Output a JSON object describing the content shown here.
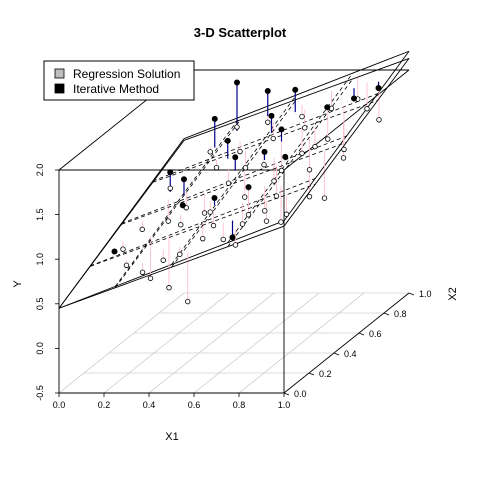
{
  "chart_data": {
    "type": "scatter",
    "title": "3-D Scatterplot",
    "xlabel": "X1",
    "ylabel": "Y",
    "zlabel": "X2",
    "xlim": [
      0,
      1
    ],
    "zlim": [
      0,
      1
    ],
    "ylim": [
      -0.5,
      2.0
    ],
    "x_ticks": [
      "0.0",
      "0.2",
      "0.4",
      "0.6",
      "0.8",
      "1.0"
    ],
    "z_ticks": [
      "0.0",
      "0.2",
      "0.4",
      "0.6",
      "0.8",
      "1.0"
    ],
    "y_ticks": [
      "-0.5",
      "0.0",
      "0.5",
      "1.0",
      "1.5",
      "2.0"
    ],
    "legend": {
      "position": "top-left",
      "entries": [
        {
          "label": "Regression Solution",
          "color": "#bebebe"
        },
        {
          "label": "Iterative Method",
          "color": "#000000"
        }
      ]
    },
    "regression_plane": {
      "intercept": 0.45,
      "b1": 0.98,
      "b2": 0.78
    },
    "iterative_plane": {
      "intercept": 0.45,
      "b1": 0.92,
      "b2": 0.76
    },
    "colors": {
      "regression_drop": "#ffc0cb",
      "iterative_drop": "#00008b",
      "grid": "#bebebe"
    },
    "series": [
      {
        "name": "Regression Solution",
        "marker": "open-circle",
        "points": [
          [
            0.09,
            0.35,
            0.72
          ],
          [
            0.2,
            0.18,
            0.73
          ],
          [
            0.31,
            0.11,
            0.73
          ],
          [
            0.38,
            0.15,
            0.82
          ],
          [
            0.47,
            0.12,
            0.92
          ],
          [
            0.55,
            0.04,
            0.48
          ],
          [
            0.5,
            0.25,
            0.95
          ],
          [
            0.63,
            0.18,
            1.02
          ],
          [
            0.74,
            0.08,
            1.07
          ],
          [
            0.8,
            0.22,
            1.18
          ],
          [
            0.26,
            0.55,
            0.96
          ],
          [
            0.38,
            0.48,
            0.98
          ],
          [
            0.45,
            0.4,
            1.08
          ],
          [
            0.52,
            0.55,
            1.08
          ],
          [
            0.62,
            0.4,
            1.05
          ],
          [
            0.7,
            0.48,
            1.17
          ],
          [
            0.78,
            0.6,
            1.33
          ],
          [
            0.88,
            0.42,
            1.23
          ],
          [
            0.24,
            0.3,
            0.45
          ],
          [
            0.35,
            0.25,
            0.4
          ],
          [
            0.42,
            0.6,
            1.18
          ],
          [
            0.55,
            0.65,
            1.33
          ],
          [
            0.6,
            0.7,
            1.21
          ],
          [
            0.68,
            0.72,
            1.38
          ],
          [
            0.75,
            0.8,
            1.45
          ],
          [
            0.85,
            0.75,
            1.39
          ],
          [
            0.92,
            0.62,
            1.44
          ],
          [
            0.95,
            0.85,
            1.61
          ],
          [
            0.3,
            0.72,
            1.22
          ],
          [
            0.36,
            0.8,
            1.31
          ],
          [
            0.48,
            0.85,
            1.4
          ],
          [
            0.58,
            0.9,
            1.59
          ],
          [
            0.65,
            0.55,
            1.26
          ],
          [
            0.72,
            0.35,
            1.15
          ],
          [
            0.82,
            0.3,
            1.08
          ],
          [
            0.9,
            0.2,
            1.28
          ],
          [
            0.15,
            0.62,
            1.1
          ],
          [
            0.2,
            0.85,
            1.25
          ],
          [
            0.28,
            0.92,
            1.45
          ],
          [
            0.4,
            0.95,
            1.47
          ],
          [
            0.52,
            0.3,
            1.04
          ],
          [
            0.62,
            0.85,
            1.52
          ],
          [
            0.7,
            0.92,
            1.66
          ],
          [
            0.8,
            0.95,
            1.73
          ],
          [
            0.88,
            0.88,
            1.7
          ],
          [
            0.93,
            0.45,
            1.18
          ],
          [
            0.12,
            0.45,
            0.83
          ],
          [
            0.18,
            0.55,
            0.81
          ],
          [
            0.44,
            0.7,
            1.24
          ],
          [
            0.66,
            0.28,
            1.08
          ],
          [
            0.76,
            0.68,
            1.5
          ],
          [
            0.33,
            0.38,
            0.96
          ]
        ]
      },
      {
        "name": "Iterative Method",
        "marker": "filled-circle",
        "points": [
          [
            0.08,
            0.3,
            0.75
          ],
          [
            0.15,
            0.62,
            1.28
          ],
          [
            0.22,
            0.85,
            1.62
          ],
          [
            0.28,
            0.92,
            1.95
          ],
          [
            0.3,
            0.45,
            1.1
          ],
          [
            0.35,
            0.72,
            1.52
          ],
          [
            0.4,
            0.95,
            1.82
          ],
          [
            0.45,
            0.6,
            1.47
          ],
          [
            0.5,
            0.8,
            1.71
          ],
          [
            0.55,
            0.9,
            1.89
          ],
          [
            0.6,
            0.7,
            1.67
          ],
          [
            0.62,
            0.4,
            1.36
          ],
          [
            0.66,
            0.2,
            1.02
          ],
          [
            0.7,
            0.55,
            1.53
          ],
          [
            0.72,
            0.85,
            1.75
          ],
          [
            0.8,
            0.92,
            1.77
          ],
          [
            0.92,
            0.9,
            1.91
          ],
          [
            0.25,
            0.55,
            1.28
          ],
          [
            0.48,
            0.38,
            1.26
          ],
          [
            0.58,
            0.6,
            1.53
          ]
        ]
      }
    ]
  }
}
